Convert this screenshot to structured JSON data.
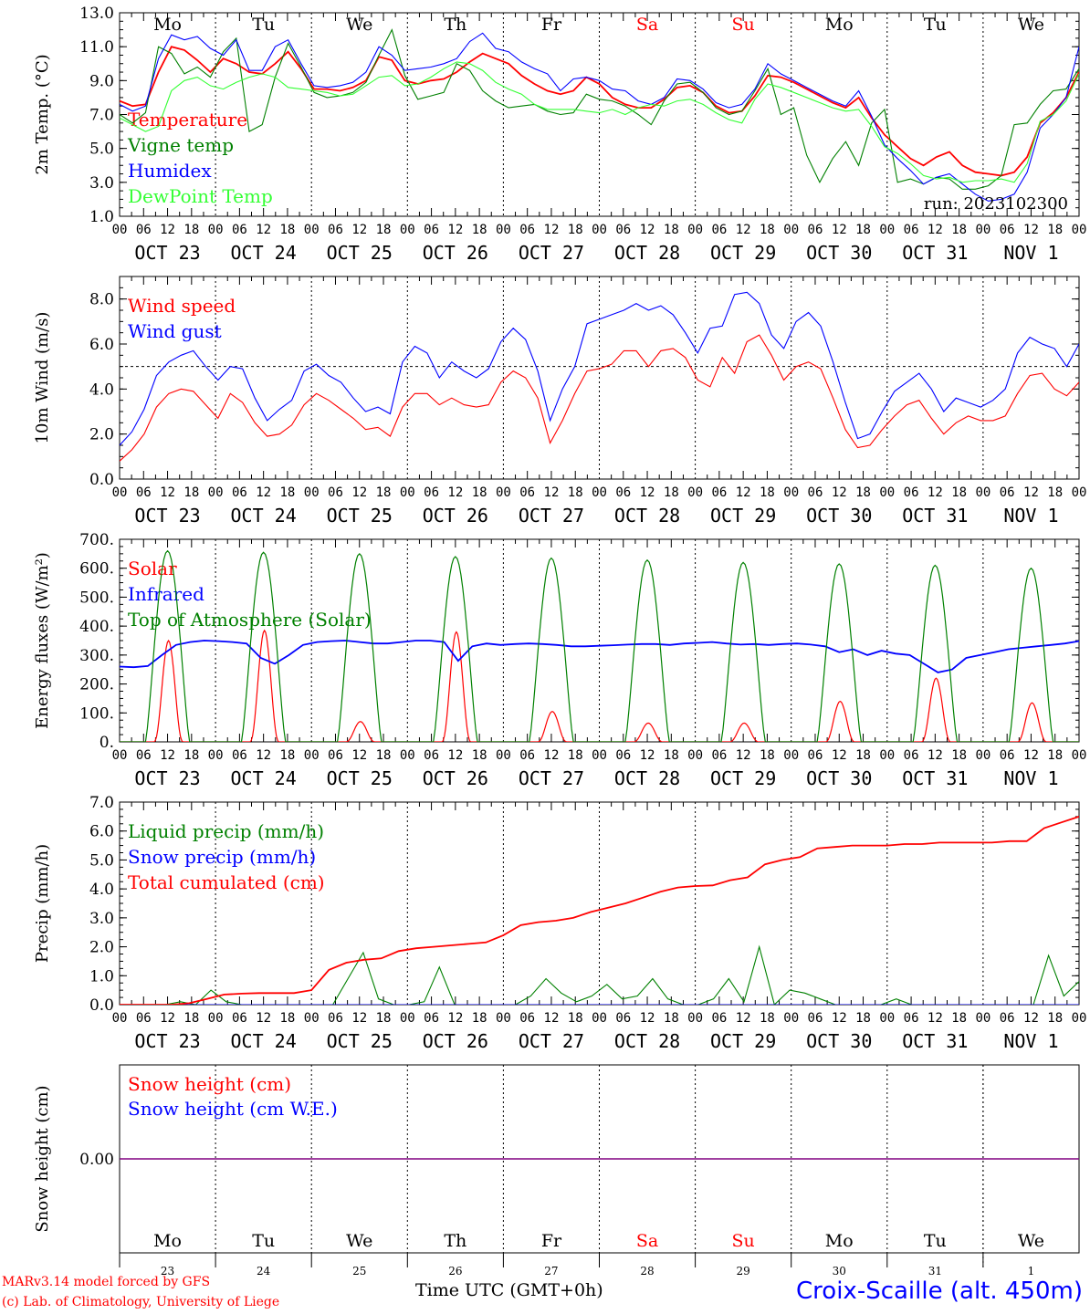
{
  "footer": {
    "model_line": "MARv3.14 model forced by GFS",
    "lab_line": "(c) Lab. of Climatology, University of Liege",
    "time_axis": "Time UTC (GMT+0h)",
    "station": "Croix-Scaille (alt. 450m)"
  },
  "days": [
    "Mo",
    "Tu",
    "We",
    "Th",
    "Fr",
    "Sa",
    "Su",
    "Mo",
    "Tu",
    "We"
  ],
  "weekend_color": "#ff0000",
  "date_labels": [
    "OCT 23",
    "OCT 24",
    "OCT 25",
    "OCT 26",
    "OCT 27",
    "OCT 28",
    "OCT 29",
    "OCT 30",
    "OCT 31",
    "NOV  1"
  ],
  "day_numbers": [
    "23",
    "24",
    "25",
    "26",
    "27",
    "28",
    "29",
    "30",
    "31",
    "1"
  ],
  "hour_ticks": [
    "00",
    "06",
    "12",
    "18"
  ],
  "chart_data": [
    {
      "type": "line",
      "ylabel": "2m Temp. (°C)",
      "ylim": [
        1,
        13
      ],
      "yticks": [
        "1.0",
        "3.0",
        "5.0",
        "7.0",
        "9.0",
        "11.0",
        "13.0"
      ],
      "x": "hours from OCT 23 00 UTC, 3-hourly",
      "annotation": "run: 2023102300",
      "series": [
        {
          "name": "Temperature",
          "color": "#ff0000",
          "values": [
            7.8,
            7.5,
            7.6,
            9.5,
            11.0,
            10.8,
            10.2,
            9.5,
            10.3,
            10.0,
            9.5,
            9.4,
            10.0,
            10.7,
            9.7,
            8.5,
            8.5,
            8.4,
            8.6,
            9.0,
            10.4,
            10.2,
            9.0,
            8.8,
            9.0,
            9.1,
            9.5,
            10.1,
            10.6,
            10.3,
            10.0,
            9.3,
            8.8,
            8.4,
            8.2,
            8.4,
            9.2,
            8.8,
            8.0,
            7.6,
            7.4,
            7.4,
            7.9,
            8.6,
            8.7,
            8.3,
            7.5,
            7.1,
            7.2,
            8.1,
            9.3,
            9.2,
            8.9,
            8.5,
            8.1,
            7.7,
            7.4,
            8.0,
            6.8,
            5.8,
            5.1,
            4.4,
            4.0,
            4.5,
            4.8,
            4.0,
            3.6,
            3.5,
            3.4,
            3.6,
            4.5,
            6.5,
            7.1,
            8.0,
            9.5
          ]
        },
        {
          "name": "Vigne temp",
          "color": "#008000",
          "values": [
            7.0,
            6.5,
            7.1,
            11.0,
            10.6,
            9.4,
            9.8,
            9.2,
            10.7,
            11.5,
            6.0,
            6.4,
            9.2,
            11.2,
            9.8,
            8.3,
            8.0,
            8.1,
            8.3,
            8.9,
            10.5,
            12.0,
            9.3,
            7.9,
            8.1,
            8.3,
            10.0,
            9.6,
            8.4,
            7.8,
            7.4,
            7.5,
            7.6,
            7.2,
            7.0,
            7.1,
            8.2,
            7.9,
            7.8,
            7.5,
            7.0,
            6.4,
            7.8,
            8.8,
            8.9,
            8.3,
            7.4,
            7.0,
            7.2,
            8.4,
            9.7,
            7.0,
            7.4,
            4.6,
            3.0,
            4.4,
            5.4,
            4.0,
            6.5,
            7.3,
            3.0,
            3.2,
            2.9,
            3.3,
            3.2,
            2.6,
            2.6,
            2.8,
            3.4,
            6.4,
            6.5,
            7.6,
            8.4,
            8.5,
            9.7
          ]
        },
        {
          "name": "Humidex",
          "color": "#0000ff",
          "values": [
            7.6,
            7.2,
            7.5,
            10.3,
            11.7,
            11.4,
            11.6,
            10.9,
            10.5,
            11.4,
            9.6,
            9.6,
            11.0,
            11.4,
            10.0,
            8.7,
            8.6,
            8.7,
            8.9,
            9.5,
            11.0,
            10.5,
            9.6,
            9.7,
            9.8,
            10.0,
            10.3,
            11.3,
            11.8,
            10.9,
            10.7,
            10.1,
            9.7,
            9.4,
            8.4,
            9.1,
            9.2,
            9.0,
            8.5,
            8.4,
            7.8,
            7.6,
            8.0,
            9.1,
            9.0,
            8.5,
            7.7,
            7.4,
            7.6,
            8.5,
            10.0,
            9.4,
            9.0,
            8.6,
            8.2,
            7.8,
            7.5,
            8.4,
            6.9,
            5.2,
            4.4,
            3.7,
            2.9,
            3.3,
            3.5,
            2.9,
            2.3,
            1.9,
            2.0,
            2.3,
            3.6,
            6.2,
            7.0,
            8.0,
            11.0
          ]
        },
        {
          "name": "DewPoint Temp",
          "color": "#33ff33",
          "values": [
            6.8,
            6.4,
            6.0,
            6.3,
            8.4,
            9.0,
            9.2,
            8.7,
            8.5,
            8.9,
            9.2,
            9.4,
            9.2,
            8.6,
            8.5,
            8.4,
            8.3,
            8.1,
            8.2,
            8.7,
            9.2,
            9.3,
            8.7,
            8.8,
            9.2,
            9.7,
            10.1,
            10.0,
            9.6,
            8.9,
            8.5,
            8.2,
            7.6,
            7.3,
            7.3,
            7.3,
            7.2,
            7.1,
            7.3,
            7.0,
            7.4,
            7.6,
            7.5,
            7.8,
            7.9,
            7.6,
            7.1,
            6.7,
            6.5,
            7.9,
            8.8,
            8.6,
            8.3,
            8.0,
            7.7,
            7.4,
            7.2,
            7.3,
            6.3,
            5.1,
            4.7,
            4.1,
            3.4,
            3.2,
            3.3,
            3.0,
            3.1,
            3.1,
            3.2,
            3.0,
            4.1,
            6.6,
            7.0,
            7.8,
            9.4
          ]
        }
      ]
    },
    {
      "type": "line",
      "ylabel": "10m Wind (m/s)",
      "ylim": [
        0,
        9
      ],
      "yticks": [
        "0.0",
        "2.0",
        "4.0",
        "6.0",
        "8.0"
      ],
      "reference_line": 5.0,
      "series": [
        {
          "name": "Wind speed",
          "color": "#ff0000",
          "values": [
            0.8,
            1.3,
            2.0,
            3.2,
            3.8,
            4.0,
            3.9,
            3.3,
            2.7,
            3.8,
            3.4,
            2.5,
            1.9,
            2.0,
            2.4,
            3.3,
            3.8,
            3.5,
            3.1,
            2.7,
            2.2,
            2.3,
            1.9,
            3.2,
            3.8,
            3.8,
            3.3,
            3.6,
            3.3,
            3.2,
            3.3,
            4.3,
            4.8,
            4.5,
            3.6,
            1.6,
            2.6,
            3.8,
            4.8,
            4.9,
            5.1,
            5.7,
            5.7,
            5.0,
            5.7,
            5.8,
            5.4,
            4.4,
            4.1,
            5.4,
            4.7,
            6.1,
            6.4,
            5.5,
            4.4,
            5.0,
            5.2,
            4.9,
            3.6,
            2.2,
            1.4,
            1.5,
            2.2,
            2.8,
            3.3,
            3.5,
            2.7,
            2.0,
            2.5,
            2.8,
            2.6,
            2.6,
            2.8,
            3.8,
            4.6,
            4.7,
            4.0,
            3.7,
            4.3
          ]
        },
        {
          "name": "Wind gust",
          "color": "#0000ff",
          "values": [
            1.5,
            2.1,
            3.1,
            4.6,
            5.2,
            5.5,
            5.7,
            5.0,
            4.4,
            5.0,
            4.9,
            3.6,
            2.6,
            3.1,
            3.5,
            4.8,
            5.1,
            4.6,
            4.3,
            3.6,
            3.0,
            3.2,
            2.9,
            5.2,
            5.9,
            5.6,
            4.5,
            5.2,
            4.8,
            4.5,
            4.9,
            6.1,
            6.7,
            6.2,
            4.8,
            2.6,
            4.0,
            5.0,
            6.9,
            7.1,
            7.3,
            7.5,
            7.8,
            7.5,
            7.7,
            7.3,
            6.5,
            5.6,
            6.7,
            6.8,
            8.2,
            8.3,
            7.8,
            6.4,
            5.8,
            7.0,
            7.4,
            6.8,
            5.2,
            3.4,
            1.8,
            2.0,
            3.0,
            3.9,
            4.3,
            4.7,
            4.0,
            3.0,
            3.6,
            3.4,
            3.2,
            3.5,
            4.0,
            5.6,
            6.3,
            6.0,
            5.8,
            5.0,
            6.0
          ]
        }
      ]
    },
    {
      "type": "line",
      "ylabel": "Energy fluxes (W/m²)",
      "ylim": [
        0,
        700
      ],
      "yticks": [
        "0.",
        "100.",
        "200.",
        "300.",
        "400.",
        "500.",
        "600.",
        "700."
      ],
      "series": [
        {
          "name": "Solar",
          "color": "#ff0000",
          "day_peaks": [
            350,
            385,
            70,
            380,
            105,
            65,
            65,
            140,
            220,
            135
          ]
        },
        {
          "name": "Infrared",
          "color": "#0000ff",
          "values": [
            260,
            258,
            262,
            300,
            335,
            345,
            350,
            348,
            345,
            340,
            290,
            270,
            300,
            335,
            345,
            348,
            350,
            345,
            340,
            340,
            345,
            350,
            350,
            345,
            280,
            330,
            340,
            335,
            338,
            340,
            338,
            335,
            330,
            330,
            332,
            334,
            336,
            338,
            338,
            335,
            340,
            342,
            345,
            340,
            336,
            338,
            335,
            338,
            340,
            336,
            330,
            310,
            320,
            300,
            315,
            305,
            300,
            270,
            240,
            250,
            290,
            300,
            310,
            320,
            325,
            330,
            335,
            340,
            348
          ]
        },
        {
          "name": "Top of Atmosphere (Solar)",
          "color": "#008000",
          "day_peaks": [
            660,
            655,
            650,
            640,
            635,
            628,
            620,
            615,
            610,
            600
          ]
        }
      ]
    },
    {
      "type": "line",
      "ylabel": "Precip (mm/h)",
      "ylim": [
        0,
        7
      ],
      "yticks": [
        "0.0",
        "1.0",
        "2.0",
        "3.0",
        "4.0",
        "5.0",
        "6.0",
        "7.0"
      ],
      "series": [
        {
          "name": "Liquid precip (mm/h)",
          "color": "#008000",
          "values": [
            0,
            0,
            0,
            0,
            0.1,
            0,
            0.5,
            0.1,
            0,
            0,
            0,
            0,
            0,
            0,
            0,
            0.9,
            1.8,
            0.2,
            0,
            0,
            0.1,
            1.3,
            0,
            0,
            0,
            0,
            0,
            0.3,
            0.9,
            0.4,
            0.1,
            0.3,
            0.7,
            0.2,
            0.3,
            0.9,
            0.2,
            0,
            0,
            0.2,
            0.9,
            0.1,
            2.0,
            0,
            0.5,
            0.4,
            0.2,
            0,
            0,
            0,
            0,
            0.2,
            0,
            0,
            0,
            0,
            0,
            0,
            0,
            0,
            0,
            1.7,
            0.3,
            0.8
          ]
        },
        {
          "name": "Snow precip (mm/h)",
          "color": "#0000ff",
          "values": [
            0
          ]
        },
        {
          "name": "Total cumulated (cm)",
          "color": "#ff0000",
          "values": [
            0,
            0,
            0,
            0,
            0.05,
            0.2,
            0.35,
            0.38,
            0.4,
            0.4,
            0.4,
            0.5,
            1.2,
            1.45,
            1.55,
            1.6,
            1.85,
            1.95,
            2.0,
            2.05,
            2.1,
            2.15,
            2.4,
            2.75,
            2.85,
            2.9,
            3.0,
            3.2,
            3.35,
            3.5,
            3.7,
            3.9,
            4.05,
            4.1,
            4.12,
            4.3,
            4.4,
            4.85,
            5.0,
            5.1,
            5.4,
            5.45,
            5.5,
            5.5,
            5.5,
            5.55,
            5.55,
            5.6,
            5.6,
            5.6,
            5.6,
            5.65,
            5.65,
            6.1,
            6.3,
            6.5
          ]
        }
      ]
    },
    {
      "type": "line",
      "ylabel": "Snow height (cm)",
      "ylim": [
        -1,
        1
      ],
      "yticks": [
        "0.00"
      ],
      "series": [
        {
          "name": "Snow height (cm)",
          "color": "#ff0000",
          "values": [
            0
          ]
        },
        {
          "name": "Snow height (cm W.E.)",
          "color": "#0000ff",
          "values": [
            0
          ]
        }
      ]
    }
  ]
}
